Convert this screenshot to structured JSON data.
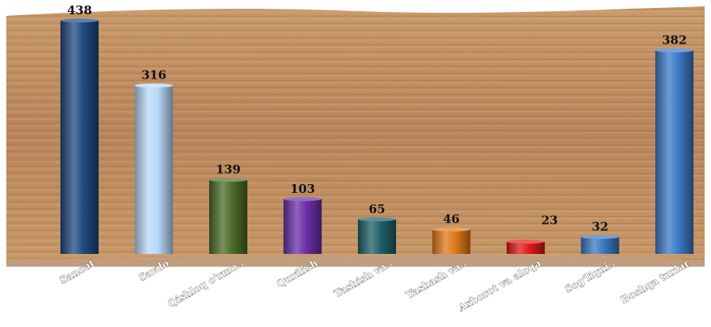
{
  "chart_data": {
    "type": "bar",
    "title": "",
    "xlabel": "",
    "ylabel": "",
    "ylim": [
      0,
      450
    ],
    "grid": false,
    "legend": "none",
    "categories": [
      "Sanoat",
      "Savdo",
      "Qishloq o'rmo..",
      "Qurilish",
      "Tashish va..",
      "Yashash va..",
      "Axborot va aloqa",
      "Sog'liqni..",
      "Boshqa turlar"
    ],
    "values": [
      438,
      316,
      139,
      103,
      65,
      46,
      23,
      32,
      382
    ],
    "colors": [
      "#1f4a80",
      "#b8d8f8",
      "#4d6b2a",
      "#6a2fa8",
      "#1f5f6a",
      "#e07a1a",
      "#e01818",
      "#3a78c0",
      "#3c7ac8"
    ]
  }
}
